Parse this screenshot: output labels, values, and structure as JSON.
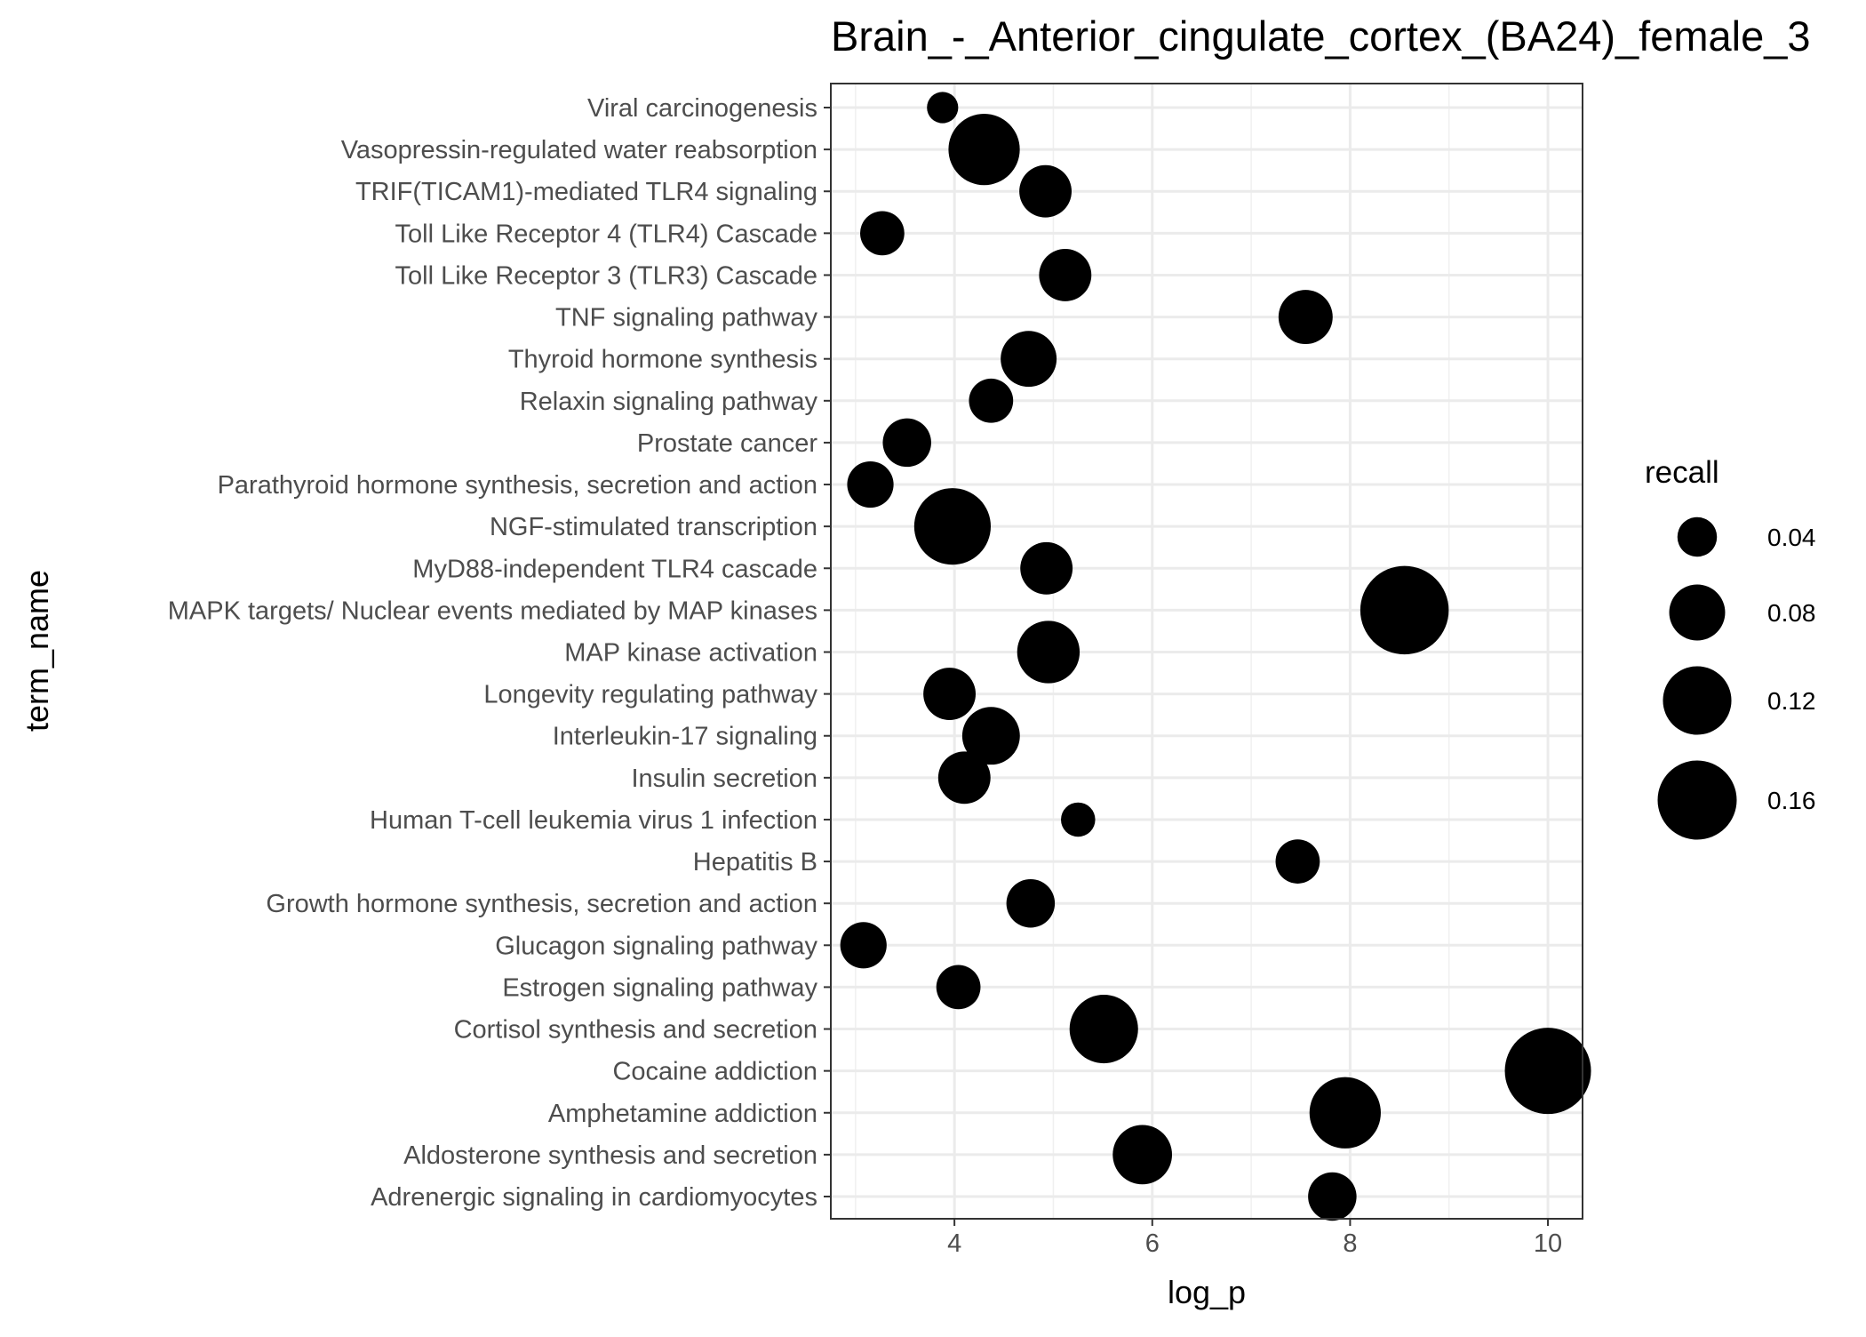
{
  "chart_data": {
    "type": "scatter",
    "title": "Brain_-_Anterior_cingulate_cortex_(BA24)_female_3",
    "xlabel": "log_p",
    "ylabel": "term_name",
    "xlim": [
      2.75,
      10.35
    ],
    "x_ticks": [
      4,
      6,
      8,
      10
    ],
    "x_tick_labels": [
      "4",
      "6",
      "8",
      "10"
    ],
    "grid": true,
    "legend": {
      "title": "recall",
      "position": "right",
      "entries": [
        {
          "label": "0.04",
          "value": 0.04
        },
        {
          "label": "0.08",
          "value": 0.08
        },
        {
          "label": "0.12",
          "value": 0.12
        },
        {
          "label": "0.16",
          "value": 0.16
        }
      ]
    },
    "categories": [
      "Viral carcinogenesis",
      "Vasopressin-regulated water reabsorption",
      "TRIF(TICAM1)-mediated TLR4 signaling ",
      "Toll Like Receptor 4 (TLR4) Cascade",
      "Toll Like Receptor 3 (TLR3) Cascade",
      "TNF signaling pathway",
      "Thyroid hormone synthesis",
      "Relaxin signaling pathway",
      "Prostate cancer",
      "Parathyroid hormone synthesis, secretion and action",
      "NGF-stimulated transcription",
      "MyD88-independent TLR4 cascade ",
      "MAPK targets/ Nuclear events mediated by MAP kinases",
      "MAP kinase activation",
      "Longevity regulating pathway",
      "Interleukin-17 signaling",
      "Insulin secretion",
      "Human T-cell leukemia virus 1 infection",
      "Hepatitis B",
      "Growth hormone synthesis, secretion and action",
      "Glucagon signaling pathway",
      "Estrogen signaling pathway",
      "Cortisol synthesis and secretion",
      "Cocaine addiction",
      "Amphetamine addiction",
      "Aldosterone synthesis and secretion",
      "Adrenergic signaling in cardiomyocytes"
    ],
    "points": [
      {
        "term": "Viral carcinogenesis",
        "log_p": 3.88,
        "recall": 0.025
      },
      {
        "term": "Vasopressin-regulated water reabsorption",
        "log_p": 4.3,
        "recall": 0.13
      },
      {
        "term": "TRIF(TICAM1)-mediated TLR4 signaling ",
        "log_p": 4.92,
        "recall": 0.07
      },
      {
        "term": "Toll Like Receptor 4 (TLR4) Cascade",
        "log_p": 3.27,
        "recall": 0.05
      },
      {
        "term": "Toll Like Receptor 3 (TLR3) Cascade",
        "log_p": 5.12,
        "recall": 0.07
      },
      {
        "term": "TNF signaling pathway",
        "log_p": 7.55,
        "recall": 0.075
      },
      {
        "term": "Thyroid hormone synthesis",
        "log_p": 4.75,
        "recall": 0.08
      },
      {
        "term": "Relaxin signaling pathway",
        "log_p": 4.37,
        "recall": 0.05
      },
      {
        "term": "Prostate cancer",
        "log_p": 3.52,
        "recall": 0.06
      },
      {
        "term": "Parathyroid hormone synthesis, secretion and action",
        "log_p": 3.15,
        "recall": 0.055
      },
      {
        "term": "NGF-stimulated transcription",
        "log_p": 3.98,
        "recall": 0.15
      },
      {
        "term": "MyD88-independent TLR4 cascade ",
        "log_p": 4.93,
        "recall": 0.07
      },
      {
        "term": "MAPK targets/ Nuclear events mediated by MAP kinases",
        "log_p": 8.55,
        "recall": 0.2
      },
      {
        "term": "MAP kinase activation",
        "log_p": 4.95,
        "recall": 0.1
      },
      {
        "term": "Longevity regulating pathway",
        "log_p": 3.95,
        "recall": 0.07
      },
      {
        "term": "Interleukin-17 signaling",
        "log_p": 4.37,
        "recall": 0.085
      },
      {
        "term": "Insulin secretion",
        "log_p": 4.1,
        "recall": 0.07
      },
      {
        "term": "Human T-cell leukemia virus 1 infection",
        "log_p": 5.25,
        "recall": 0.03
      },
      {
        "term": "Hepatitis B",
        "log_p": 7.47,
        "recall": 0.05
      },
      {
        "term": "Growth hormone synthesis, secretion and action",
        "log_p": 4.77,
        "recall": 0.06
      },
      {
        "term": "Glucagon signaling pathway",
        "log_p": 3.08,
        "recall": 0.055
      },
      {
        "term": "Estrogen signaling pathway",
        "log_p": 4.04,
        "recall": 0.05
      },
      {
        "term": "Cortisol synthesis and secretion",
        "log_p": 5.51,
        "recall": 0.12
      },
      {
        "term": "Cocaine addiction",
        "log_p": 10.0,
        "recall": 0.19
      },
      {
        "term": "Amphetamine addiction",
        "log_p": 7.95,
        "recall": 0.13
      },
      {
        "term": "Aldosterone synthesis and secretion",
        "log_p": 5.9,
        "recall": 0.09
      },
      {
        "term": "Adrenergic signaling in cardiomyocytes",
        "log_p": 7.82,
        "recall": 0.06
      }
    ]
  }
}
